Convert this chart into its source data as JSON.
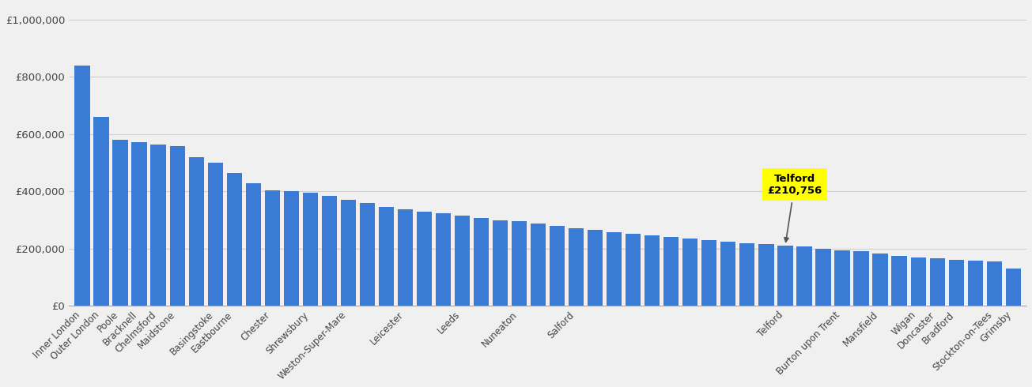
{
  "bar_color": "#3a7bd5",
  "highlight_city": "Telford",
  "highlight_value": 210756,
  "annotation_text": "Telford\n£210,756",
  "annotation_color": "yellow",
  "annotation_text_color": "black",
  "ylabel_ticks": [
    0,
    200000,
    400000,
    600000,
    800000,
    1000000
  ],
  "ylabel_labels": [
    "£0",
    "£200,000",
    "£400,000",
    "£600,000",
    "£800,000",
    "£1,000,000"
  ],
  "background_color": "#f0f0f0",
  "grid_color": "#d0d0d0",
  "all_values": [
    840000,
    660000,
    580000,
    572000,
    565000,
    558000,
    520000,
    500000,
    465000,
    430000,
    405000,
    400000,
    395000,
    385000,
    372000,
    360000,
    345000,
    338000,
    330000,
    323000,
    315000,
    308000,
    300000,
    295000,
    287000,
    280000,
    272000,
    265000,
    258000,
    252000,
    246000,
    240000,
    235000,
    230000,
    225000,
    220000,
    215000,
    210756,
    207000,
    200000,
    195000,
    190000,
    182000,
    175000,
    168000,
    165000,
    162000,
    158000,
    155000,
    130000
  ],
  "named_positions": [
    0,
    1,
    2,
    3,
    4,
    5,
    7,
    8,
    10,
    12,
    14,
    17,
    20,
    23,
    26,
    37,
    40,
    42,
    44,
    45,
    46,
    48,
    49
  ],
  "named_labels": [
    "Inner London",
    "Outer London",
    "Poole",
    "Bracknell",
    "Chelmsford",
    "Maidstone",
    "Basingstoke",
    "Eastbourne",
    "Chester",
    "Shrewsbury",
    "Weston-Super-Mare",
    "Leicester",
    "Leeds",
    "Nuneaton",
    "Salford",
    "Telford",
    "Burton upon Trent",
    "Mansfield",
    "Wigan",
    "Doncaster",
    "Bradford",
    "Stockton-on-Tees",
    "Grimsby"
  ],
  "telford_index": 37
}
